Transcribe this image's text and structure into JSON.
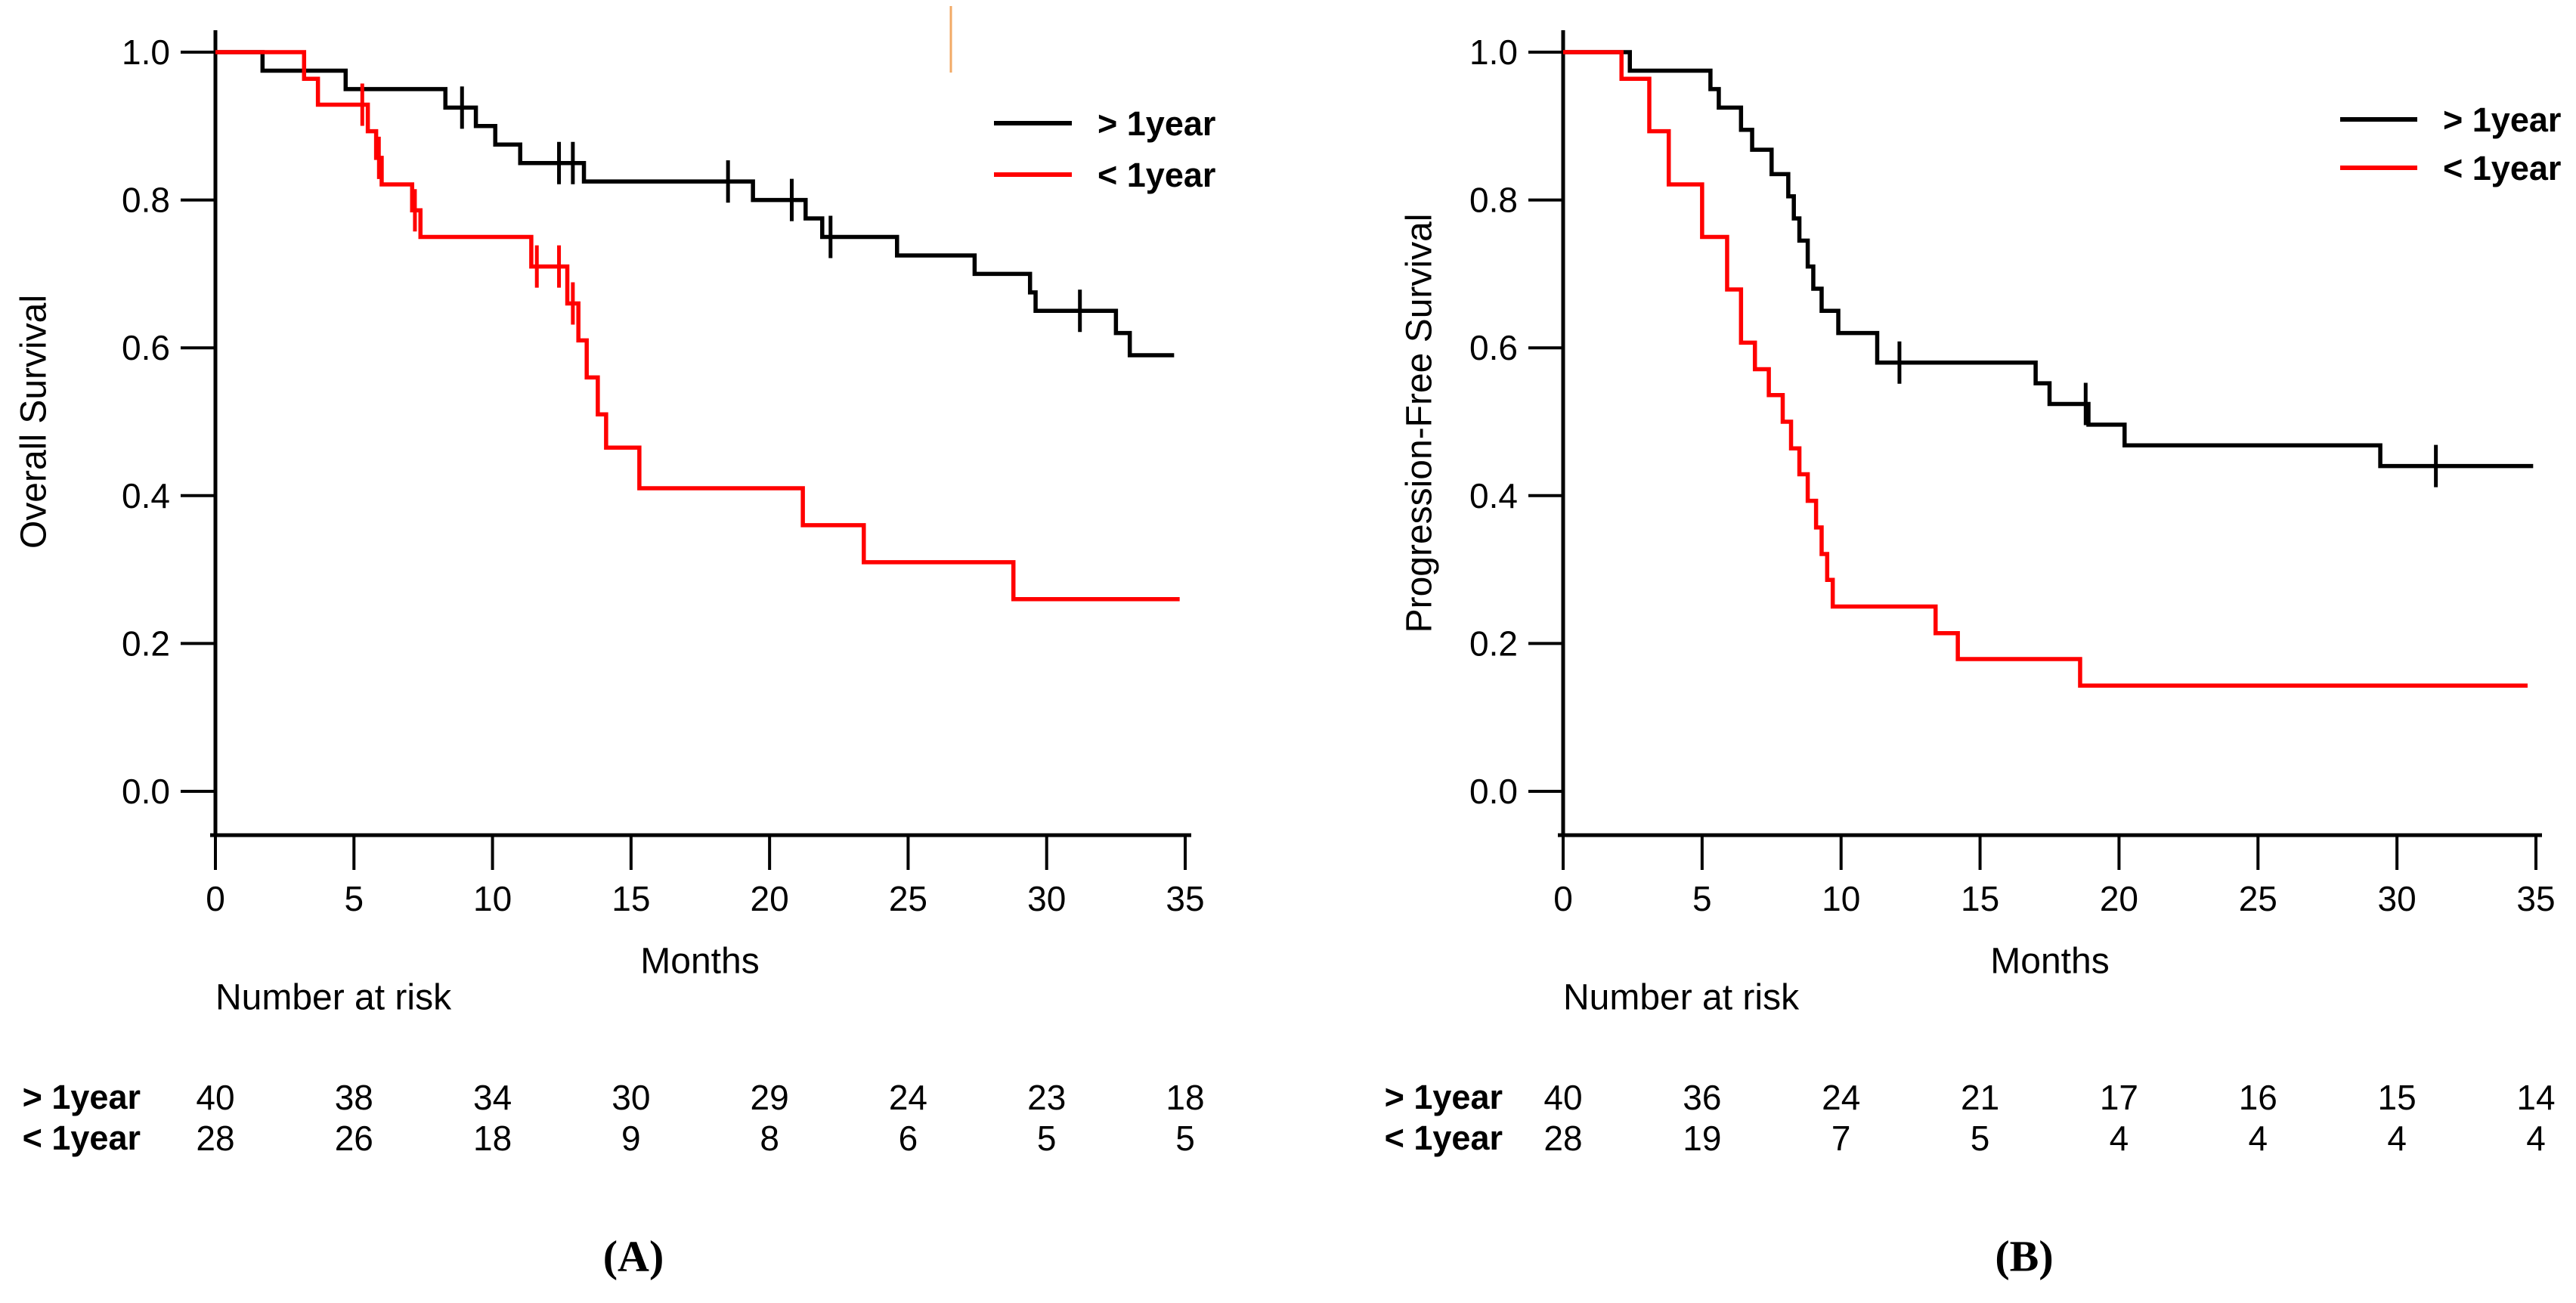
{
  "figure": {
    "background": "#ffffff",
    "accent_colors": {
      "group_over_1year": "#000000",
      "group_under_1year": "#ff0000"
    },
    "artifact": {
      "color": "#f2aa66"
    }
  },
  "chart_data": [
    {
      "type": "line",
      "subtype": "kaplan-meier-step",
      "panel": "A",
      "caption": "(A)",
      "xlabel": "Months",
      "ylabel": "Overall Survival",
      "xlim": [
        0,
        35
      ],
      "ylim": [
        0.0,
        1.0
      ],
      "xticks": [
        0,
        5,
        10,
        15,
        20,
        25,
        30,
        35
      ],
      "yticks": [
        "0.0",
        "0.2",
        "0.4",
        "0.6",
        "0.8",
        "1.0"
      ],
      "grid": false,
      "legend_position": "top-right",
      "series": [
        {
          "name": "> 1year",
          "color": "#000000",
          "start": [
            0,
            1.0
          ],
          "steps": [
            [
              1.7,
              0.975
            ],
            [
              4.7,
              0.95
            ],
            [
              8.3,
              0.925
            ],
            [
              9.4,
              0.9
            ],
            [
              10.1,
              0.875
            ],
            [
              11.0,
              0.85
            ],
            [
              13.3,
              0.825
            ],
            [
              19.4,
              0.8
            ],
            [
              21.3,
              0.775
            ],
            [
              21.9,
              0.75
            ],
            [
              24.6,
              0.725
            ],
            [
              27.4,
              0.7
            ],
            [
              29.4,
              0.675
            ],
            [
              29.6,
              0.65
            ],
            [
              32.5,
              0.62
            ],
            [
              33.0,
              0.59
            ]
          ],
          "end_time": 34.6,
          "censors": [
            [
              8.9,
              0.925
            ],
            [
              12.4,
              0.85
            ],
            [
              12.9,
              0.85
            ],
            [
              18.5,
              0.825
            ],
            [
              20.8,
              0.8
            ],
            [
              22.2,
              0.75
            ],
            [
              31.2,
              0.65
            ]
          ]
        },
        {
          "name": "< 1year",
          "color": "#ff0000",
          "start": [
            0,
            1.0
          ],
          "steps": [
            [
              3.2,
              0.964
            ],
            [
              3.7,
              0.929
            ],
            [
              5.5,
              0.893
            ],
            [
              5.8,
              0.857
            ],
            [
              6.0,
              0.821
            ],
            [
              7.1,
              0.786
            ],
            [
              7.4,
              0.75
            ],
            [
              11.4,
              0.71
            ],
            [
              12.7,
              0.66
            ],
            [
              13.1,
              0.61
            ],
            [
              13.4,
              0.56
            ],
            [
              13.8,
              0.51
            ],
            [
              14.1,
              0.465
            ],
            [
              15.3,
              0.41
            ],
            [
              21.2,
              0.36
            ],
            [
              23.4,
              0.31
            ],
            [
              28.8,
              0.26
            ]
          ],
          "end_time": 34.8,
          "censors": [
            [
              5.3,
              0.929
            ],
            [
              5.9,
              0.857
            ],
            [
              7.2,
              0.786
            ],
            [
              11.6,
              0.71
            ],
            [
              12.4,
              0.71
            ],
            [
              12.9,
              0.66
            ]
          ]
        }
      ],
      "number_at_risk": {
        "header": "Number at risk",
        "times": [
          0,
          5,
          10,
          15,
          20,
          25,
          30,
          35
        ],
        "rows": [
          {
            "label": "> 1year",
            "values": [
              40,
              38,
              34,
              30,
              29,
              24,
              23,
              18
            ]
          },
          {
            "label": "< 1year",
            "values": [
              28,
              26,
              18,
              9,
              8,
              6,
              5,
              5
            ]
          }
        ]
      }
    },
    {
      "type": "line",
      "subtype": "kaplan-meier-step",
      "panel": "B",
      "caption": "(B)",
      "xlabel": "Months",
      "ylabel": "Progression-Free Survival",
      "xlim": [
        0,
        35
      ],
      "ylim": [
        0.0,
        1.0
      ],
      "xticks": [
        0,
        5,
        10,
        15,
        20,
        25,
        30,
        35
      ],
      "yticks": [
        "0.0",
        "0.2",
        "0.4",
        "0.6",
        "0.8",
        "1.0"
      ],
      "grid": false,
      "legend_position": "top-right",
      "series": [
        {
          "name": "> 1year",
          "color": "#000000",
          "start": [
            0,
            1.0
          ],
          "steps": [
            [
              2.4,
              0.975
            ],
            [
              5.3,
              0.95
            ],
            [
              5.6,
              0.925
            ],
            [
              6.4,
              0.895
            ],
            [
              6.8,
              0.868
            ],
            [
              7.5,
              0.835
            ],
            [
              8.1,
              0.805
            ],
            [
              8.3,
              0.775
            ],
            [
              8.5,
              0.745
            ],
            [
              8.8,
              0.71
            ],
            [
              9.0,
              0.68
            ],
            [
              9.3,
              0.65
            ],
            [
              9.9,
              0.62
            ],
            [
              11.3,
              0.58
            ],
            [
              17.0,
              0.552
            ],
            [
              17.5,
              0.524
            ],
            [
              18.9,
              0.496
            ],
            [
              20.2,
              0.468
            ],
            [
              29.4,
              0.44
            ]
          ],
          "end_time": 34.9,
          "censors": [
            [
              12.1,
              0.58
            ],
            [
              18.8,
              0.524
            ],
            [
              31.4,
              0.44
            ]
          ]
        },
        {
          "name": "< 1year",
          "color": "#ff0000",
          "start": [
            0,
            1.0
          ],
          "steps": [
            [
              2.1,
              0.964
            ],
            [
              3.1,
              0.893
            ],
            [
              3.8,
              0.821
            ],
            [
              5.0,
              0.75
            ],
            [
              5.9,
              0.679
            ],
            [
              6.4,
              0.607
            ],
            [
              6.9,
              0.571
            ],
            [
              7.4,
              0.536
            ],
            [
              7.9,
              0.5
            ],
            [
              8.2,
              0.464
            ],
            [
              8.5,
              0.429
            ],
            [
              8.8,
              0.393
            ],
            [
              9.1,
              0.357
            ],
            [
              9.3,
              0.321
            ],
            [
              9.5,
              0.286
            ],
            [
              9.7,
              0.25
            ],
            [
              13.4,
              0.214
            ],
            [
              14.2,
              0.179
            ],
            [
              18.6,
              0.143
            ]
          ],
          "end_time": 34.7,
          "censors": []
        }
      ],
      "number_at_risk": {
        "header": "Number at risk",
        "times": [
          0,
          5,
          10,
          15,
          20,
          25,
          30,
          35
        ],
        "rows": [
          {
            "label": "> 1year",
            "values": [
              40,
              36,
              24,
              21,
              17,
              16,
              15,
              14
            ]
          },
          {
            "label": "< 1year",
            "values": [
              28,
              19,
              7,
              5,
              4,
              4,
              4,
              4
            ]
          }
        ]
      }
    }
  ]
}
